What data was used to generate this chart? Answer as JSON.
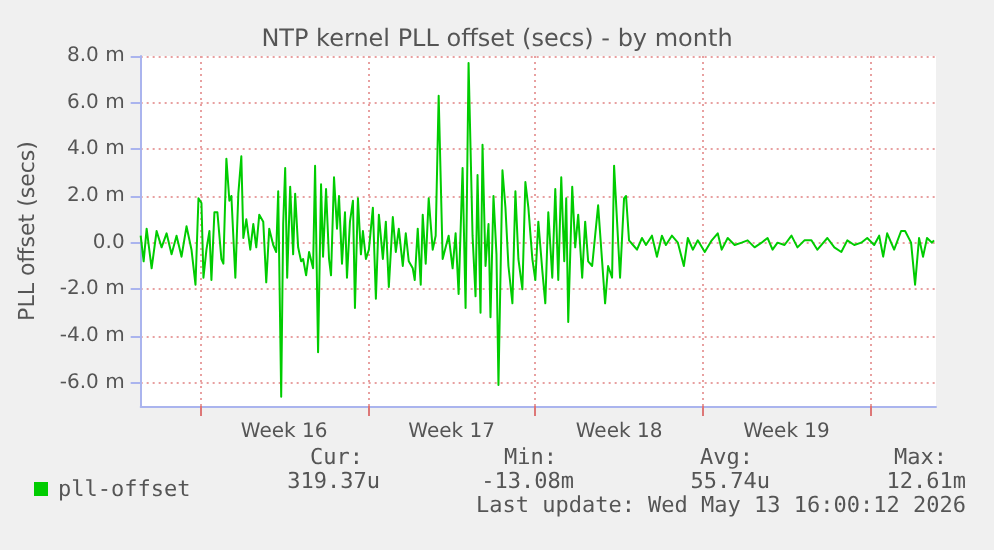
{
  "chart_data": {
    "type": "line",
    "title": "NTP kernel PLL offset (secs) - by month",
    "ylabel": "PLL offset (secs)",
    "xlim": [
      "2026-04-10T12:00",
      "2026-05-13T18:00"
    ],
    "xticks": [
      {
        "value": "2026-04-13T00:00",
        "label": null
      },
      {
        "value": "2026-04-16T12:00",
        "label": "Week 16"
      },
      {
        "value": "2026-04-20T00:00",
        "label": null
      },
      {
        "value": "2026-04-23T12:00",
        "label": "Week 17"
      },
      {
        "value": "2026-04-27T00:00",
        "label": null
      },
      {
        "value": "2026-04-30T12:00",
        "label": "Week 18"
      },
      {
        "value": "2026-05-04T00:00",
        "label": null
      },
      {
        "value": "2026-05-07T12:00",
        "label": "Week 19"
      },
      {
        "value": "2026-05-11T00:00",
        "label": null
      }
    ],
    "ylim": [
      -7,
      8
    ],
    "yticks": [
      {
        "value": -6,
        "label": "-6.0 m"
      },
      {
        "value": -4,
        "label": "-4.0 m"
      },
      {
        "value": -2,
        "label": "-2.0 m"
      },
      {
        "value": 0,
        "label": "0.0"
      },
      {
        "value": 2,
        "label": "2.0 m"
      },
      {
        "value": 4,
        "label": "4.0 m"
      },
      {
        "value": 6,
        "label": "6.0 m"
      },
      {
        "value": 8,
        "label": "8.0 m"
      }
    ],
    "grid": true,
    "legend": "bottom left",
    "marker": "none",
    "line_style": "solid",
    "annotations": [
      "Cur:",
      "319.37u",
      "Min:",
      "-13.08m",
      "Avg:",
      "55.74u",
      "Max:",
      "12.61m",
      "Last update: Wed May 13 16:00:12 2026"
    ],
    "series": [
      {
        "name": "pll-offset",
        "color": "#00cc00",
        "x": [
          "2026-04-10T12:00",
          "2026-04-10T15:00",
          "2026-04-10T18:00",
          "2026-04-10T23:00",
          "2026-04-11T04:00",
          "2026-04-11T09:00",
          "2026-04-11T14:00",
          "2026-04-11T19:00",
          "2026-04-12T00:00",
          "2026-04-12T05:00",
          "2026-04-12T10:00",
          "2026-04-12T15:00",
          "2026-04-12T19:00",
          "2026-04-12T22:00",
          "2026-04-13T01:00",
          "2026-04-13T03:00",
          "2026-04-13T06:00",
          "2026-04-13T09:00",
          "2026-04-13T11:00",
          "2026-04-13T14:00",
          "2026-04-13T17:00",
          "2026-04-13T21:00",
          "2026-04-13T23:00",
          "2026-04-14T02:00",
          "2026-04-14T05:00",
          "2026-04-14T07:00",
          "2026-04-14T11:00",
          "2026-04-14T14:00",
          "2026-04-14T17:00",
          "2026-04-14T19:00",
          "2026-04-14T22:00",
          "2026-04-15T02:00",
          "2026-04-15T05:00",
          "2026-04-15T08:00",
          "2026-04-15T11:00",
          "2026-04-15T15:00",
          "2026-04-15T18:00",
          "2026-04-15T21:00",
          "2026-04-16T01:00",
          "2026-04-16T04:00",
          "2026-04-16T06:00",
          "2026-04-16T09:00",
          "2026-04-16T11:00",
          "2026-04-16T13:00",
          "2026-04-16T15:00",
          "2026-04-16T18:00",
          "2026-04-16T21:00",
          "2026-04-16T23:00",
          "2026-04-17T02:00",
          "2026-04-17T05:00",
          "2026-04-17T07:00",
          "2026-04-17T10:00",
          "2026-04-17T13:00",
          "2026-04-17T17:00",
          "2026-04-17T19:00",
          "2026-04-17T22:00",
          "2026-04-18T01:00",
          "2026-04-18T03:00",
          "2026-04-18T06:00",
          "2026-04-18T09:00",
          "2026-04-18T11:00",
          "2026-04-18T14:00",
          "2026-04-18T17:00",
          "2026-04-18T19:00",
          "2026-04-18T22:00",
          "2026-04-19T01:00",
          "2026-04-19T03:00",
          "2026-04-19T06:00",
          "2026-04-19T09:00",
          "2026-04-19T11:00",
          "2026-04-19T14:00",
          "2026-04-19T17:00",
          "2026-04-19T19:00",
          "2026-04-19T22:00",
          "2026-04-20T01:00",
          "2026-04-20T05:00",
          "2026-04-20T08:00",
          "2026-04-20T11:00",
          "2026-04-20T15:00",
          "2026-04-20T18:00",
          "2026-04-20T21:00",
          "2026-04-21T01:00",
          "2026-04-21T04:00",
          "2026-04-21T07:00",
          "2026-04-21T11:00",
          "2026-04-21T14:00",
          "2026-04-21T17:00",
          "2026-04-21T21:00",
          "2026-04-21T23:00",
          "2026-04-22T02:00",
          "2026-04-22T05:00",
          "2026-04-22T07:00",
          "2026-04-22T10:00",
          "2026-04-22T13:00",
          "2026-04-22T17:00",
          "2026-04-22T20:00",
          "2026-04-22T23:00",
          "2026-04-23T03:00",
          "2026-04-23T06:00",
          "2026-04-23T09:00",
          "2026-04-23T13:00",
          "2026-04-23T16:00",
          "2026-04-23T19:00",
          "2026-04-23T23:00",
          "2026-04-24T02:00",
          "2026-04-24T05:00",
          "2026-04-24T09:00",
          "2026-04-24T12:00",
          "2026-04-24T14:00",
          "2026-04-24T17:00",
          "2026-04-24T19:00",
          "2026-04-24T22:00",
          "2026-04-25T01:00",
          "2026-04-25T03:00",
          "2026-04-25T06:00",
          "2026-04-25T09:00",
          "2026-04-25T11:00",
          "2026-04-25T15:00",
          "2026-04-25T18:00",
          "2026-04-25T21:00",
          "2026-04-26T01:00",
          "2026-04-26T04:00",
          "2026-04-26T07:00",
          "2026-04-26T11:00",
          "2026-04-26T14:00",
          "2026-04-26T17:00",
          "2026-04-26T21:00",
          "2026-04-27T00:00",
          "2026-04-27T03:00",
          "2026-04-27T07:00",
          "2026-04-27T10:00",
          "2026-04-27T13:00",
          "2026-04-27T17:00",
          "2026-04-27T20:00",
          "2026-04-27T23:00",
          "2026-04-28T02:00",
          "2026-04-28T05:00",
          "2026-04-28T07:00",
          "2026-04-28T09:00",
          "2026-04-28T13:00",
          "2026-04-28T16:00",
          "2026-04-28T19:00",
          "2026-04-28T23:00",
          "2026-04-29T02:00",
          "2026-04-29T05:00",
          "2026-04-29T09:00",
          "2026-04-29T12:00",
          "2026-04-29T15:00",
          "2026-04-29T19:00",
          "2026-04-29T22:00",
          "2026-04-30T01:00",
          "2026-04-30T05:00",
          "2026-04-30T07:00",
          "2026-04-30T10:00",
          "2026-04-30T13:00",
          "2026-04-30T17:00",
          "2026-04-30T19:00",
          "2026-04-30T22:00",
          "2026-05-01T02:00",
          "2026-05-01T06:00",
          "2026-05-01T11:00",
          "2026-05-01T15:00",
          "2026-05-01T21:00",
          "2026-05-02T02:00",
          "2026-05-02T07:00",
          "2026-05-02T11:00",
          "2026-05-02T17:00",
          "2026-05-02T23:00",
          "2026-05-03T05:00",
          "2026-05-03T09:00",
          "2026-05-03T14:00",
          "2026-05-03T19:00",
          "2026-05-04T02:00",
          "2026-05-04T09:00",
          "2026-05-04T15:00",
          "2026-05-04T19:00",
          "2026-05-05T01:00",
          "2026-05-05T08:00",
          "2026-05-05T15:00",
          "2026-05-05T21:00",
          "2026-05-06T04:00",
          "2026-05-06T11:00",
          "2026-05-06T17:00",
          "2026-05-06T22:00",
          "2026-05-07T03:00",
          "2026-05-07T10:00",
          "2026-05-07T17:00",
          "2026-05-07T23:00",
          "2026-05-08T06:00",
          "2026-05-08T13:00",
          "2026-05-08T19:00",
          "2026-05-09T01:00",
          "2026-05-09T05:00",
          "2026-05-09T12:00",
          "2026-05-09T19:00",
          "2026-05-10T01:00",
          "2026-05-10T08:00",
          "2026-05-10T15:00",
          "2026-05-10T21:00",
          "2026-05-11T04:00",
          "2026-05-11T09:00",
          "2026-05-11T13:00",
          "2026-05-11T17:00",
          "2026-05-12T00:00",
          "2026-05-12T07:00",
          "2026-05-12T11:00",
          "2026-05-12T17:00",
          "2026-05-12T21:00",
          "2026-05-13T01:00",
          "2026-05-13T05:00",
          "2026-05-13T09:00",
          "2026-05-13T14:00",
          "2026-05-13T16:00"
        ],
        "values": [
          0.3,
          -0.8,
          0.6,
          -1.1,
          0.5,
          -0.2,
          0.4,
          -0.5,
          0.3,
          -0.6,
          0.7,
          -0.3,
          -1.8,
          1.9,
          1.7,
          -1.5,
          -0.3,
          0.5,
          -1.6,
          1.3,
          1.3,
          -0.7,
          -0.9,
          3.6,
          1.8,
          2.0,
          -1.5,
          2.1,
          3.7,
          0.2,
          1.0,
          -0.3,
          0.8,
          -0.2,
          1.2,
          0.9,
          -1.7,
          0.6,
          -0.1,
          -0.4,
          2.2,
          -6.6,
          0.8,
          3.2,
          -1.5,
          2.4,
          -0.5,
          2.1,
          -0.2,
          -0.8,
          -0.7,
          -1.4,
          -0.4,
          -1.1,
          3.3,
          -4.7,
          2.5,
          -0.6,
          2.3,
          -0.7,
          -1.4,
          2.8,
          0.6,
          2.0,
          -0.9,
          1.3,
          -1.5,
          0.9,
          1.8,
          -2.8,
          1.9,
          -0.5,
          0.5,
          -0.7,
          -0.3,
          1.5,
          -2.4,
          1.2,
          -0.7,
          0.9,
          -1.9,
          1.1,
          -0.4,
          0.6,
          -1.0,
          0.4,
          -0.8,
          -1.1,
          -1.6,
          0.6,
          -1.8,
          1.2,
          -0.9,
          1.9,
          -0.3,
          0.3,
          6.3,
          -0.7,
          -0.2,
          0.3,
          -1.1,
          0.4,
          -2.2,
          3.2,
          -2.8,
          7.7,
          0.3,
          -2.3,
          2.9,
          -3.0,
          4.2,
          -1.0,
          0.8,
          -3.2,
          2.0,
          -0.5,
          -6.1,
          3.1,
          1.5,
          -1.0,
          -2.6,
          2.2,
          -0.7,
          -2.0,
          2.6,
          1.5,
          -0.7,
          -1.6,
          0.9,
          -1.2,
          -2.6,
          1.3,
          -1.5,
          2.3,
          -1.6,
          2.8,
          -0.8,
          1.9,
          -3.4,
          2.4,
          -0.2,
          1.2,
          -1.5,
          0.9,
          -0.8,
          -1.0,
          0.3,
          1.6,
          -0.8,
          -2.6,
          -1.0,
          -1.5,
          3.3,
          0.9,
          -1.5,
          1.9,
          2.0,
          0.1,
          -0.1,
          -0.3,
          0.2,
          -0.1,
          0.3,
          -0.6,
          0.3,
          -0.1,
          0.3,
          0.0,
          -1.0,
          0.2,
          -0.3,
          0.1,
          -0.4,
          0.1,
          0.4,
          -0.3,
          0.2,
          -0.1,
          0.0,
          0.1,
          -0.2,
          0.0,
          0.2,
          -0.3,
          0.0,
          -0.1,
          0.3,
          -0.2,
          0.1,
          0.1,
          -0.3,
          0.0,
          0.2,
          -0.2,
          -0.4,
          0.1,
          -0.1,
          0.0,
          0.2,
          -0.1,
          0.3,
          -0.6,
          0.4,
          -0.3,
          0.5,
          0.5,
          0.0,
          -1.8,
          0.2,
          -0.6,
          0.2,
          0.0,
          0.1
        ]
      }
    ]
  }
}
